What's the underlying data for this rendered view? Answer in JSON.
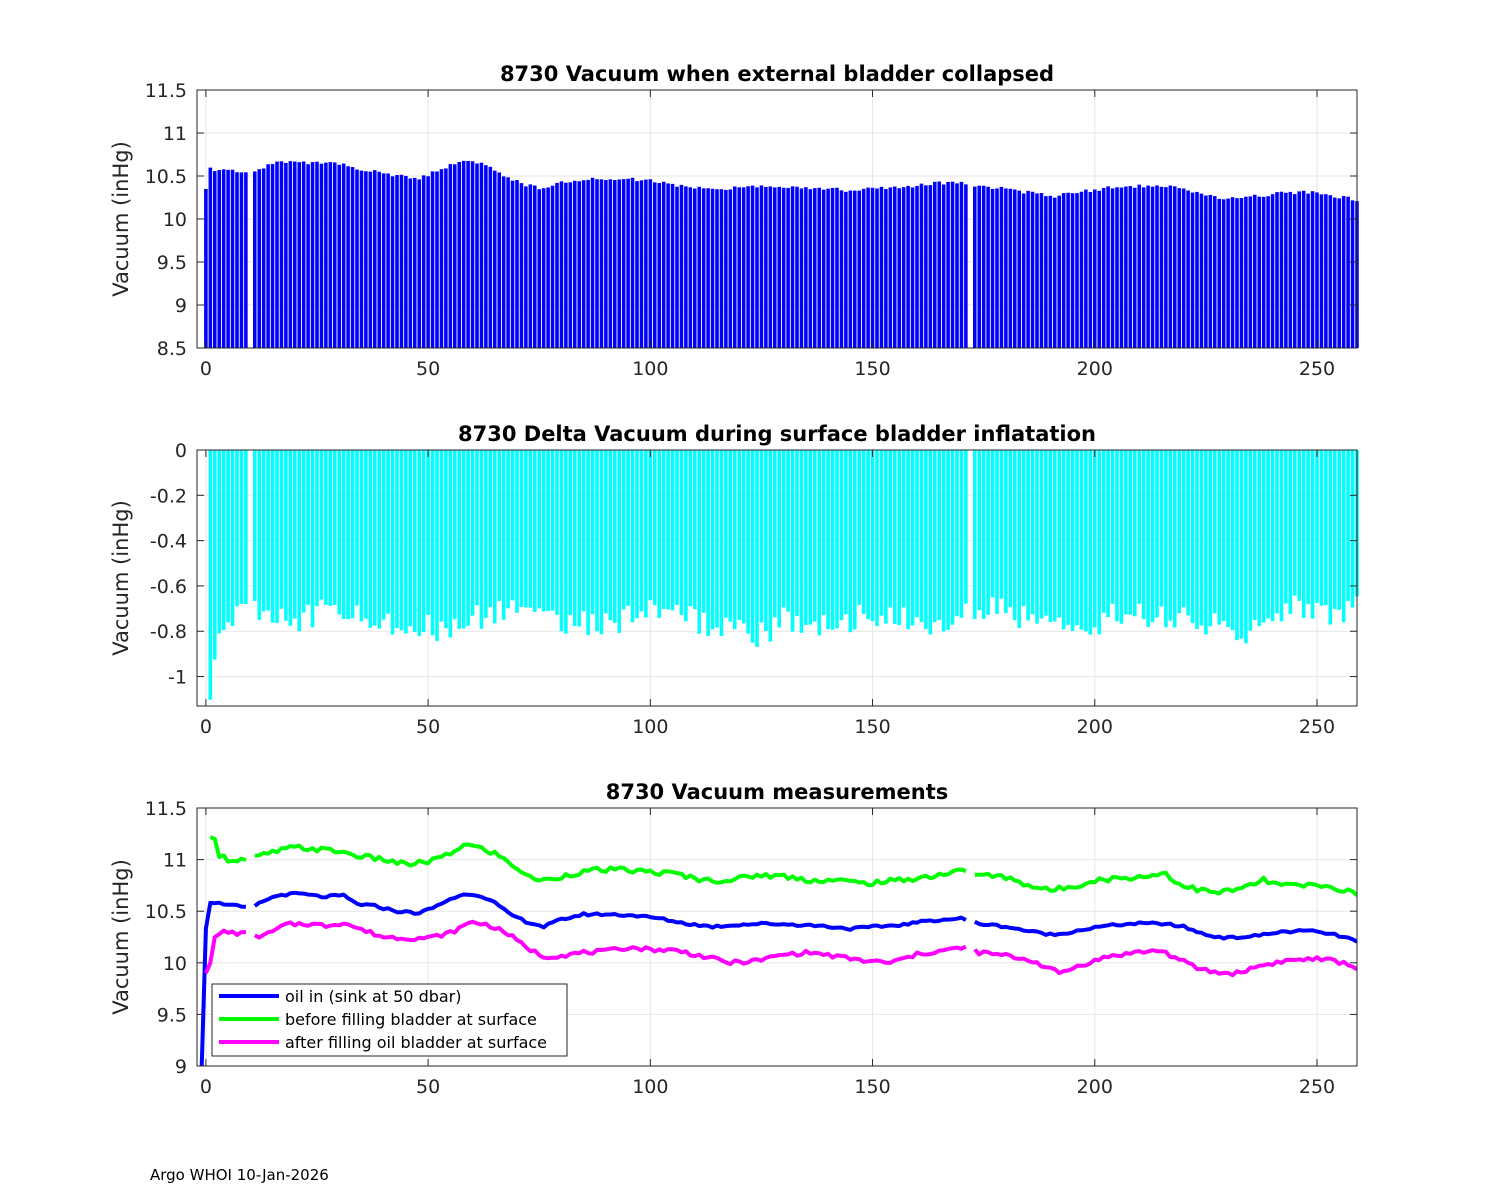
{
  "footer": "Argo WHOI 10-Jan-2026",
  "colors": {
    "bar1": "#0000ff",
    "bar2": "#00ffff",
    "oil_in": "#0000ff",
    "before": "#00ff00",
    "after": "#ff00ff"
  },
  "chart_data": [
    {
      "type": "bar",
      "title": "8730 Vacuum when external bladder collapsed",
      "ylabel": "Vacuum (inHg)",
      "xlabel": "",
      "xlim": [
        -2,
        259
      ],
      "ylim": [
        8.5,
        11.5
      ],
      "xticks": [
        0,
        50,
        100,
        150,
        200,
        250
      ],
      "yticks": [
        8.5,
        9,
        9.5,
        10,
        10.5,
        11,
        11.5
      ],
      "ytick_labels": [
        "8.5",
        "9",
        "9.5",
        "10",
        "10.5",
        "11",
        "11.5"
      ],
      "grid": true,
      "gaps": [
        10,
        172
      ],
      "knots": [
        [
          0,
          10.33
        ],
        [
          1,
          10.58
        ],
        [
          5,
          10.57
        ],
        [
          9,
          10.53
        ],
        [
          11,
          10.55
        ],
        [
          14,
          10.62
        ],
        [
          17,
          10.66
        ],
        [
          21,
          10.67
        ],
        [
          26,
          10.64
        ],
        [
          31,
          10.65
        ],
        [
          34,
          10.57
        ],
        [
          38,
          10.55
        ],
        [
          43,
          10.5
        ],
        [
          48,
          10.48
        ],
        [
          52,
          10.55
        ],
        [
          55,
          10.62
        ],
        [
          59,
          10.67
        ],
        [
          62,
          10.65
        ],
        [
          65,
          10.58
        ],
        [
          68,
          10.48
        ],
        [
          72,
          10.4
        ],
        [
          76,
          10.35
        ],
        [
          80,
          10.42
        ],
        [
          85,
          10.47
        ],
        [
          90,
          10.47
        ],
        [
          96,
          10.46
        ],
        [
          102,
          10.43
        ],
        [
          108,
          10.38
        ],
        [
          114,
          10.35
        ],
        [
          120,
          10.37
        ],
        [
          126,
          10.38
        ],
        [
          132,
          10.37
        ],
        [
          138,
          10.36
        ],
        [
          145,
          10.33
        ],
        [
          151,
          10.35
        ],
        [
          157,
          10.37
        ],
        [
          163,
          10.41
        ],
        [
          170,
          10.43
        ],
        [
          174,
          10.38
        ],
        [
          180,
          10.35
        ],
        [
          186,
          10.3
        ],
        [
          191,
          10.27
        ],
        [
          197,
          10.32
        ],
        [
          203,
          10.36
        ],
        [
          209,
          10.38
        ],
        [
          215,
          10.38
        ],
        [
          220,
          10.35
        ],
        [
          225,
          10.27
        ],
        [
          230,
          10.24
        ],
        [
          236,
          10.26
        ],
        [
          242,
          10.3
        ],
        [
          248,
          10.31
        ],
        [
          253,
          10.28
        ],
        [
          257,
          10.24
        ],
        [
          259,
          10.2
        ]
      ]
    },
    {
      "type": "bar",
      "title": "8730 Delta Vacuum during surface bladder inflatation",
      "ylabel": "Vacuum (inHg)",
      "xlabel": "",
      "xlim": [
        -2,
        259
      ],
      "ylim": [
        -1.13,
        0
      ],
      "xticks": [
        0,
        50,
        100,
        150,
        200,
        250
      ],
      "yticks": [
        -1,
        -0.8,
        -0.6,
        -0.4,
        -0.2,
        0
      ],
      "ytick_labels": [
        "-1",
        "-0.8",
        "-0.6",
        "-0.4",
        "-0.2",
        "0"
      ],
      "grid": true,
      "gaps": [
        10,
        172
      ],
      "knots": [
        [
          1,
          -1.05
        ],
        [
          2,
          -0.88
        ],
        [
          3,
          -0.78
        ],
        [
          5,
          -0.72
        ],
        [
          10,
          -0.72
        ],
        [
          20,
          -0.75
        ],
        [
          30,
          -0.7
        ],
        [
          40,
          -0.75
        ],
        [
          50,
          -0.78
        ],
        [
          55,
          -0.8
        ],
        [
          60,
          -0.74
        ],
        [
          70,
          -0.7
        ],
        [
          80,
          -0.75
        ],
        [
          90,
          -0.77
        ],
        [
          100,
          -0.72
        ],
        [
          110,
          -0.75
        ],
        [
          120,
          -0.8
        ],
        [
          126,
          -0.82
        ],
        [
          130,
          -0.75
        ],
        [
          140,
          -0.77
        ],
        [
          150,
          -0.72
        ],
        [
          160,
          -0.77
        ],
        [
          170,
          -0.73
        ],
        [
          175,
          -0.7
        ],
        [
          185,
          -0.74
        ],
        [
          195,
          -0.8
        ],
        [
          205,
          -0.73
        ],
        [
          215,
          -0.72
        ],
        [
          225,
          -0.76
        ],
        [
          235,
          -0.8
        ],
        [
          245,
          -0.7
        ],
        [
          255,
          -0.72
        ],
        [
          259,
          -0.7
        ]
      ]
    },
    {
      "type": "line",
      "title": "8730 Vacuum measurements",
      "ylabel": "Vacuum (inHg)",
      "xlabel": "",
      "xlim": [
        -2,
        259
      ],
      "ylim": [
        9,
        11.5
      ],
      "xticks": [
        0,
        50,
        100,
        150,
        200,
        250
      ],
      "yticks": [
        9,
        9.5,
        10,
        10.5,
        11,
        11.5
      ],
      "ytick_labels": [
        "9",
        "9.5",
        "10",
        "10.5",
        "11",
        "11.5"
      ],
      "grid": true,
      "legend_position": "bottom-left",
      "gaps": [
        10,
        172
      ],
      "series": [
        {
          "name": "oil in (sink at 50 dbar)",
          "knots": [
            [
              -1,
              8.9
            ],
            [
              0,
              10.33
            ],
            [
              1,
              10.58
            ],
            [
              5,
              10.57
            ],
            [
              9,
              10.53
            ],
            [
              11,
              10.55
            ],
            [
              14,
              10.62
            ],
            [
              17,
              10.66
            ],
            [
              21,
              10.67
            ],
            [
              26,
              10.64
            ],
            [
              31,
              10.65
            ],
            [
              34,
              10.57
            ],
            [
              38,
              10.55
            ],
            [
              43,
              10.5
            ],
            [
              48,
              10.48
            ],
            [
              52,
              10.55
            ],
            [
              55,
              10.62
            ],
            [
              59,
              10.67
            ],
            [
              62,
              10.65
            ],
            [
              65,
              10.58
            ],
            [
              68,
              10.48
            ],
            [
              72,
              10.4
            ],
            [
              76,
              10.35
            ],
            [
              80,
              10.42
            ],
            [
              85,
              10.47
            ],
            [
              90,
              10.47
            ],
            [
              96,
              10.46
            ],
            [
              102,
              10.43
            ],
            [
              108,
              10.38
            ],
            [
              114,
              10.35
            ],
            [
              120,
              10.37
            ],
            [
              126,
              10.38
            ],
            [
              132,
              10.37
            ],
            [
              138,
              10.36
            ],
            [
              145,
              10.33
            ],
            [
              151,
              10.35
            ],
            [
              157,
              10.37
            ],
            [
              163,
              10.41
            ],
            [
              170,
              10.43
            ],
            [
              174,
              10.38
            ],
            [
              180,
              10.35
            ],
            [
              186,
              10.3
            ],
            [
              191,
              10.27
            ],
            [
              197,
              10.32
            ],
            [
              203,
              10.36
            ],
            [
              209,
              10.38
            ],
            [
              215,
              10.38
            ],
            [
              220,
              10.35
            ],
            [
              225,
              10.27
            ],
            [
              230,
              10.24
            ],
            [
              236,
              10.26
            ],
            [
              242,
              10.3
            ],
            [
              248,
              10.31
            ],
            [
              253,
              10.28
            ],
            [
              257,
              10.24
            ],
            [
              259,
              10.2
            ]
          ]
        },
        {
          "name": "before filling bladder at surface",
          "knots": [
            [
              1,
              11.22
            ],
            [
              2,
              11.2
            ],
            [
              3,
              11.05
            ],
            [
              5,
              11.0
            ],
            [
              9,
              11.0
            ],
            [
              11,
              11.02
            ],
            [
              15,
              11.07
            ],
            [
              20,
              11.12
            ],
            [
              25,
              11.1
            ],
            [
              30,
              11.08
            ],
            [
              35,
              11.03
            ],
            [
              40,
              11.0
            ],
            [
              45,
              10.95
            ],
            [
              50,
              10.98
            ],
            [
              55,
              11.05
            ],
            [
              58,
              11.15
            ],
            [
              61,
              11.12
            ],
            [
              65,
              11.06
            ],
            [
              70,
              10.92
            ],
            [
              73,
              10.82
            ],
            [
              77,
              10.8
            ],
            [
              82,
              10.86
            ],
            [
              88,
              10.9
            ],
            [
              94,
              10.9
            ],
            [
              100,
              10.88
            ],
            [
              106,
              10.86
            ],
            [
              112,
              10.8
            ],
            [
              118,
              10.8
            ],
            [
              124,
              10.85
            ],
            [
              130,
              10.84
            ],
            [
              136,
              10.8
            ],
            [
              142,
              10.8
            ],
            [
              148,
              10.77
            ],
            [
              154,
              10.79
            ],
            [
              160,
              10.82
            ],
            [
              166,
              10.86
            ],
            [
              171,
              10.9
            ],
            [
              174,
              10.85
            ],
            [
              180,
              10.83
            ],
            [
              186,
              10.74
            ],
            [
              190,
              10.7
            ],
            [
              195,
              10.74
            ],
            [
              200,
              10.8
            ],
            [
              206,
              10.82
            ],
            [
              212,
              10.84
            ],
            [
              216,
              10.87
            ],
            [
              219,
              10.76
            ],
            [
              224,
              10.7
            ],
            [
              228,
              10.68
            ],
            [
              233,
              10.72
            ],
            [
              238,
              10.8
            ],
            [
              242,
              10.75
            ],
            [
              248,
              10.75
            ],
            [
              253,
              10.73
            ],
            [
              257,
              10.7
            ],
            [
              259,
              10.65
            ]
          ]
        },
        {
          "name": "after filling oil bladder at surface",
          "knots": [
            [
              0,
              9.9
            ],
            [
              1,
              10.0
            ],
            [
              2,
              10.25
            ],
            [
              4,
              10.3
            ],
            [
              9,
              10.28
            ],
            [
              11,
              10.25
            ],
            [
              14,
              10.28
            ],
            [
              18,
              10.37
            ],
            [
              22,
              10.38
            ],
            [
              27,
              10.36
            ],
            [
              31,
              10.39
            ],
            [
              35,
              10.32
            ],
            [
              40,
              10.25
            ],
            [
              45,
              10.24
            ],
            [
              50,
              10.24
            ],
            [
              55,
              10.29
            ],
            [
              60,
              10.4
            ],
            [
              64,
              10.36
            ],
            [
              68,
              10.28
            ],
            [
              72,
              10.15
            ],
            [
              76,
              10.06
            ],
            [
              80,
              10.07
            ],
            [
              85,
              10.1
            ],
            [
              90,
              10.11
            ],
            [
              95,
              10.15
            ],
            [
              100,
              10.13
            ],
            [
              106,
              10.12
            ],
            [
              112,
              10.06
            ],
            [
              118,
              10.0
            ],
            [
              124,
              10.02
            ],
            [
              130,
              10.08
            ],
            [
              136,
              10.1
            ],
            [
              142,
              10.06
            ],
            [
              148,
              10.02
            ],
            [
              154,
              10.0
            ],
            [
              160,
              10.08
            ],
            [
              166,
              10.12
            ],
            [
              171,
              10.15
            ],
            [
              174,
              10.1
            ],
            [
              180,
              10.07
            ],
            [
              186,
              10.02
            ],
            [
              192,
              9.9
            ],
            [
              197,
              9.98
            ],
            [
              203,
              10.06
            ],
            [
              209,
              10.1
            ],
            [
              215,
              10.12
            ],
            [
              218,
              10.05
            ],
            [
              223,
              9.95
            ],
            [
              228,
              9.9
            ],
            [
              232,
              9.9
            ],
            [
              237,
              9.97
            ],
            [
              243,
              10.02
            ],
            [
              249,
              10.04
            ],
            [
              254,
              10.02
            ],
            [
              257,
              9.98
            ],
            [
              259,
              9.95
            ]
          ]
        }
      ]
    }
  ]
}
